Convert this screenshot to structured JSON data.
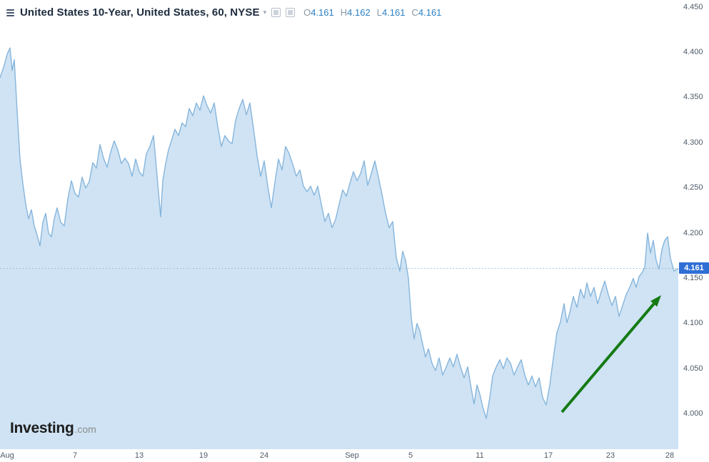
{
  "header": {
    "title": "United States 10-Year, United States, 60, NYSE",
    "ohlc": [
      {
        "label": "O",
        "value": "4.161"
      },
      {
        "label": "H",
        "value": "4.162"
      },
      {
        "label": "L",
        "value": "4.161"
      },
      {
        "label": "C",
        "value": "4.161"
      }
    ]
  },
  "watermark": {
    "name": "Investing",
    "tld": ".com"
  },
  "colors": {
    "line": "#86b5dc",
    "area_fill": "#cfe3f4",
    "price_line": "#8fb4d2",
    "badge_bg": "#2e6fd6",
    "arrow": "#147a14",
    "title_text": "#1d2b3e",
    "ohlc_value": "#2c80c4",
    "axis_text": "#4d5a68"
  },
  "chart_data": {
    "type": "area",
    "title": "United States 10-Year, United States, 60, NYSE",
    "symbol": "United States 10-Year",
    "interval": "60",
    "exchange": "NYSE",
    "ohlc": {
      "open": 4.161,
      "high": 4.162,
      "low": 4.161,
      "close": 4.161
    },
    "current_price": 4.161,
    "price_label": "4.161",
    "price_line": 4.161,
    "xlabel": "",
    "ylabel": "",
    "ylim": [
      3.961,
      4.458
    ],
    "y_ticks": [
      4.45,
      4.4,
      4.35,
      4.3,
      4.25,
      4.2,
      4.15,
      4.1,
      4.05,
      4.0
    ],
    "x_ticks": [
      {
        "label": "Aug",
        "x": 0.011
      },
      {
        "label": "7",
        "x": 0.111
      },
      {
        "label": "13",
        "x": 0.205
      },
      {
        "label": "19",
        "x": 0.3
      },
      {
        "label": "24",
        "x": 0.389
      },
      {
        "label": "Sep",
        "x": 0.519
      },
      {
        "label": "5",
        "x": 0.605
      },
      {
        "label": "11",
        "x": 0.707
      },
      {
        "label": "17",
        "x": 0.808
      },
      {
        "label": "23",
        "x": 0.9
      },
      {
        "label": "28",
        "x": 0.987
      }
    ],
    "points": [
      [
        0,
        4.372
      ],
      [
        6,
        4.386
      ],
      [
        10,
        4.398
      ],
      [
        14,
        4.405
      ],
      [
        17,
        4.38
      ],
      [
        20,
        4.392
      ],
      [
        24,
        4.335
      ],
      [
        28,
        4.282
      ],
      [
        32,
        4.255
      ],
      [
        36,
        4.232
      ],
      [
        40,
        4.216
      ],
      [
        44,
        4.226
      ],
      [
        48,
        4.208
      ],
      [
        52,
        4.198
      ],
      [
        56,
        4.186
      ],
      [
        60,
        4.212
      ],
      [
        64,
        4.222
      ],
      [
        68,
        4.2
      ],
      [
        72,
        4.196
      ],
      [
        76,
        4.216
      ],
      [
        80,
        4.228
      ],
      [
        85,
        4.212
      ],
      [
        90,
        4.208
      ],
      [
        95,
        4.238
      ],
      [
        100,
        4.258
      ],
      [
        105,
        4.244
      ],
      [
        110,
        4.24
      ],
      [
        115,
        4.262
      ],
      [
        120,
        4.25
      ],
      [
        125,
        4.257
      ],
      [
        130,
        4.278
      ],
      [
        135,
        4.272
      ],
      [
        140,
        4.298
      ],
      [
        145,
        4.283
      ],
      [
        150,
        4.273
      ],
      [
        155,
        4.29
      ],
      [
        160,
        4.302
      ],
      [
        165,
        4.292
      ],
      [
        170,
        4.277
      ],
      [
        175,
        4.283
      ],
      [
        180,
        4.277
      ],
      [
        185,
        4.263
      ],
      [
        190,
        4.282
      ],
      [
        195,
        4.268
      ],
      [
        200,
        4.263
      ],
      [
        205,
        4.288
      ],
      [
        210,
        4.296
      ],
      [
        215,
        4.308
      ],
      [
        220,
        4.263
      ],
      [
        225,
        4.218
      ],
      [
        228,
        4.258
      ],
      [
        232,
        4.277
      ],
      [
        236,
        4.292
      ],
      [
        240,
        4.302
      ],
      [
        245,
        4.315
      ],
      [
        250,
        4.308
      ],
      [
        255,
        4.322
      ],
      [
        260,
        4.318
      ],
      [
        265,
        4.338
      ],
      [
        270,
        4.33
      ],
      [
        275,
        4.344
      ],
      [
        280,
        4.336
      ],
      [
        285,
        4.352
      ],
      [
        290,
        4.341
      ],
      [
        295,
        4.333
      ],
      [
        300,
        4.344
      ],
      [
        305,
        4.318
      ],
      [
        310,
        4.296
      ],
      [
        315,
        4.308
      ],
      [
        320,
        4.302
      ],
      [
        325,
        4.299
      ],
      [
        330,
        4.325
      ],
      [
        335,
        4.338
      ],
      [
        340,
        4.348
      ],
      [
        345,
        4.331
      ],
      [
        350,
        4.344
      ],
      [
        355,
        4.316
      ],
      [
        360,
        4.286
      ],
      [
        365,
        4.263
      ],
      [
        370,
        4.28
      ],
      [
        375,
        4.252
      ],
      [
        380,
        4.228
      ],
      [
        385,
        4.256
      ],
      [
        390,
        4.282
      ],
      [
        395,
        4.27
      ],
      [
        400,
        4.296
      ],
      [
        405,
        4.288
      ],
      [
        410,
        4.276
      ],
      [
        415,
        4.263
      ],
      [
        420,
        4.27
      ],
      [
        425,
        4.252
      ],
      [
        430,
        4.246
      ],
      [
        435,
        4.252
      ],
      [
        440,
        4.242
      ],
      [
        445,
        4.252
      ],
      [
        450,
        4.232
      ],
      [
        455,
        4.213
      ],
      [
        460,
        4.222
      ],
      [
        465,
        4.206
      ],
      [
        470,
        4.215
      ],
      [
        475,
        4.232
      ],
      [
        480,
        4.248
      ],
      [
        485,
        4.241
      ],
      [
        490,
        4.255
      ],
      [
        495,
        4.268
      ],
      [
        500,
        4.258
      ],
      [
        505,
        4.266
      ],
      [
        510,
        4.28
      ],
      [
        515,
        4.253
      ],
      [
        520,
        4.266
      ],
      [
        525,
        4.28
      ],
      [
        530,
        4.262
      ],
      [
        535,
        4.243
      ],
      [
        540,
        4.222
      ],
      [
        545,
        4.206
      ],
      [
        550,
        4.213
      ],
      [
        555,
        4.173
      ],
      [
        560,
        4.158
      ],
      [
        564,
        4.18
      ],
      [
        568,
        4.17
      ],
      [
        572,
        4.15
      ],
      [
        576,
        4.106
      ],
      [
        580,
        4.083
      ],
      [
        584,
        4.1
      ],
      [
        588,
        4.092
      ],
      [
        592,
        4.077
      ],
      [
        596,
        4.063
      ],
      [
        600,
        4.072
      ],
      [
        605,
        4.056
      ],
      [
        610,
        4.048
      ],
      [
        615,
        4.062
      ],
      [
        620,
        4.043
      ],
      [
        625,
        4.052
      ],
      [
        630,
        4.062
      ],
      [
        635,
        4.052
      ],
      [
        640,
        4.066
      ],
      [
        645,
        4.052
      ],
      [
        650,
        4.04
      ],
      [
        655,
        4.052
      ],
      [
        660,
        4.028
      ],
      [
        664,
        4.011
      ],
      [
        668,
        4.032
      ],
      [
        672,
        4.022
      ],
      [
        676,
        4.008
      ],
      [
        681,
        3.995
      ],
      [
        686,
        4.018
      ],
      [
        690,
        4.042
      ],
      [
        695,
        4.052
      ],
      [
        700,
        4.06
      ],
      [
        705,
        4.05
      ],
      [
        710,
        4.062
      ],
      [
        715,
        4.056
      ],
      [
        720,
        4.043
      ],
      [
        725,
        4.052
      ],
      [
        730,
        4.06
      ],
      [
        735,
        4.043
      ],
      [
        740,
        4.032
      ],
      [
        745,
        4.042
      ],
      [
        750,
        4.03
      ],
      [
        755,
        4.04
      ],
      [
        760,
        4.018
      ],
      [
        765,
        4.01
      ],
      [
        770,
        4.032
      ],
      [
        775,
        4.062
      ],
      [
        780,
        4.09
      ],
      [
        785,
        4.102
      ],
      [
        790,
        4.122
      ],
      [
        794,
        4.101
      ],
      [
        798,
        4.112
      ],
      [
        803,
        4.13
      ],
      [
        808,
        4.118
      ],
      [
        813,
        4.138
      ],
      [
        818,
        4.128
      ],
      [
        822,
        4.145
      ],
      [
        827,
        4.13
      ],
      [
        832,
        4.14
      ],
      [
        837,
        4.122
      ],
      [
        842,
        4.135
      ],
      [
        847,
        4.147
      ],
      [
        852,
        4.132
      ],
      [
        857,
        4.12
      ],
      [
        862,
        4.13
      ],
      [
        867,
        4.108
      ],
      [
        872,
        4.12
      ],
      [
        877,
        4.132
      ],
      [
        882,
        4.14
      ],
      [
        887,
        4.15
      ],
      [
        891,
        4.14
      ],
      [
        895,
        4.152
      ],
      [
        899,
        4.156
      ],
      [
        903,
        4.162
      ],
      [
        907,
        4.2
      ],
      [
        911,
        4.178
      ],
      [
        915,
        4.192
      ],
      [
        919,
        4.17
      ],
      [
        923,
        4.16
      ],
      [
        927,
        4.182
      ],
      [
        931,
        4.192
      ],
      [
        935,
        4.196
      ],
      [
        939,
        4.172
      ],
      [
        944,
        4.158
      ],
      [
        950,
        4.161
      ]
    ],
    "annotations": [
      {
        "type": "arrow",
        "from": [
          787,
          578
        ],
        "to": [
          926,
          414
        ],
        "color": "#147a14"
      }
    ],
    "legend_position": "top-left",
    "grid": false
  }
}
